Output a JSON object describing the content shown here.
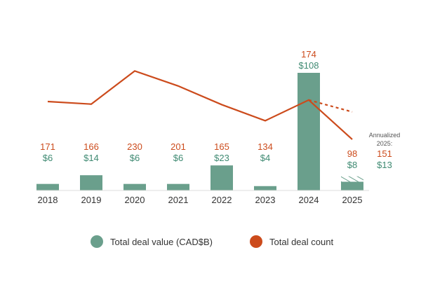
{
  "chart_data": {
    "type": "bar+line",
    "categories": [
      "2018",
      "2019",
      "2020",
      "2021",
      "2022",
      "2023",
      "2024",
      "2025"
    ],
    "series": [
      {
        "name": "Total deal value (CAD$B)",
        "type": "bar",
        "values": [
          6,
          14,
          6,
          6,
          23,
          4,
          108,
          8
        ],
        "labels": [
          "$6",
          "$14",
          "$6",
          "$6",
          "$23",
          "$4",
          "$108",
          "$8"
        ],
        "color": "#6a9f8c"
      },
      {
        "name": "Total deal count",
        "type": "line",
        "values": [
          171,
          166,
          230,
          201,
          165,
          134,
          174,
          98
        ],
        "labels": [
          "171",
          "166",
          "230",
          "201",
          "165",
          "134",
          "174",
          "98"
        ],
        "color": "#cc4b1c"
      }
    ],
    "annualized": {
      "title_line1": "Annualized",
      "title_line2": "2025:",
      "count": 151,
      "count_label": "151",
      "value": 13,
      "value_label": "$13",
      "count_style": "dashed",
      "value_style": "hatched"
    },
    "legend_position": "bottom",
    "grid": false
  }
}
